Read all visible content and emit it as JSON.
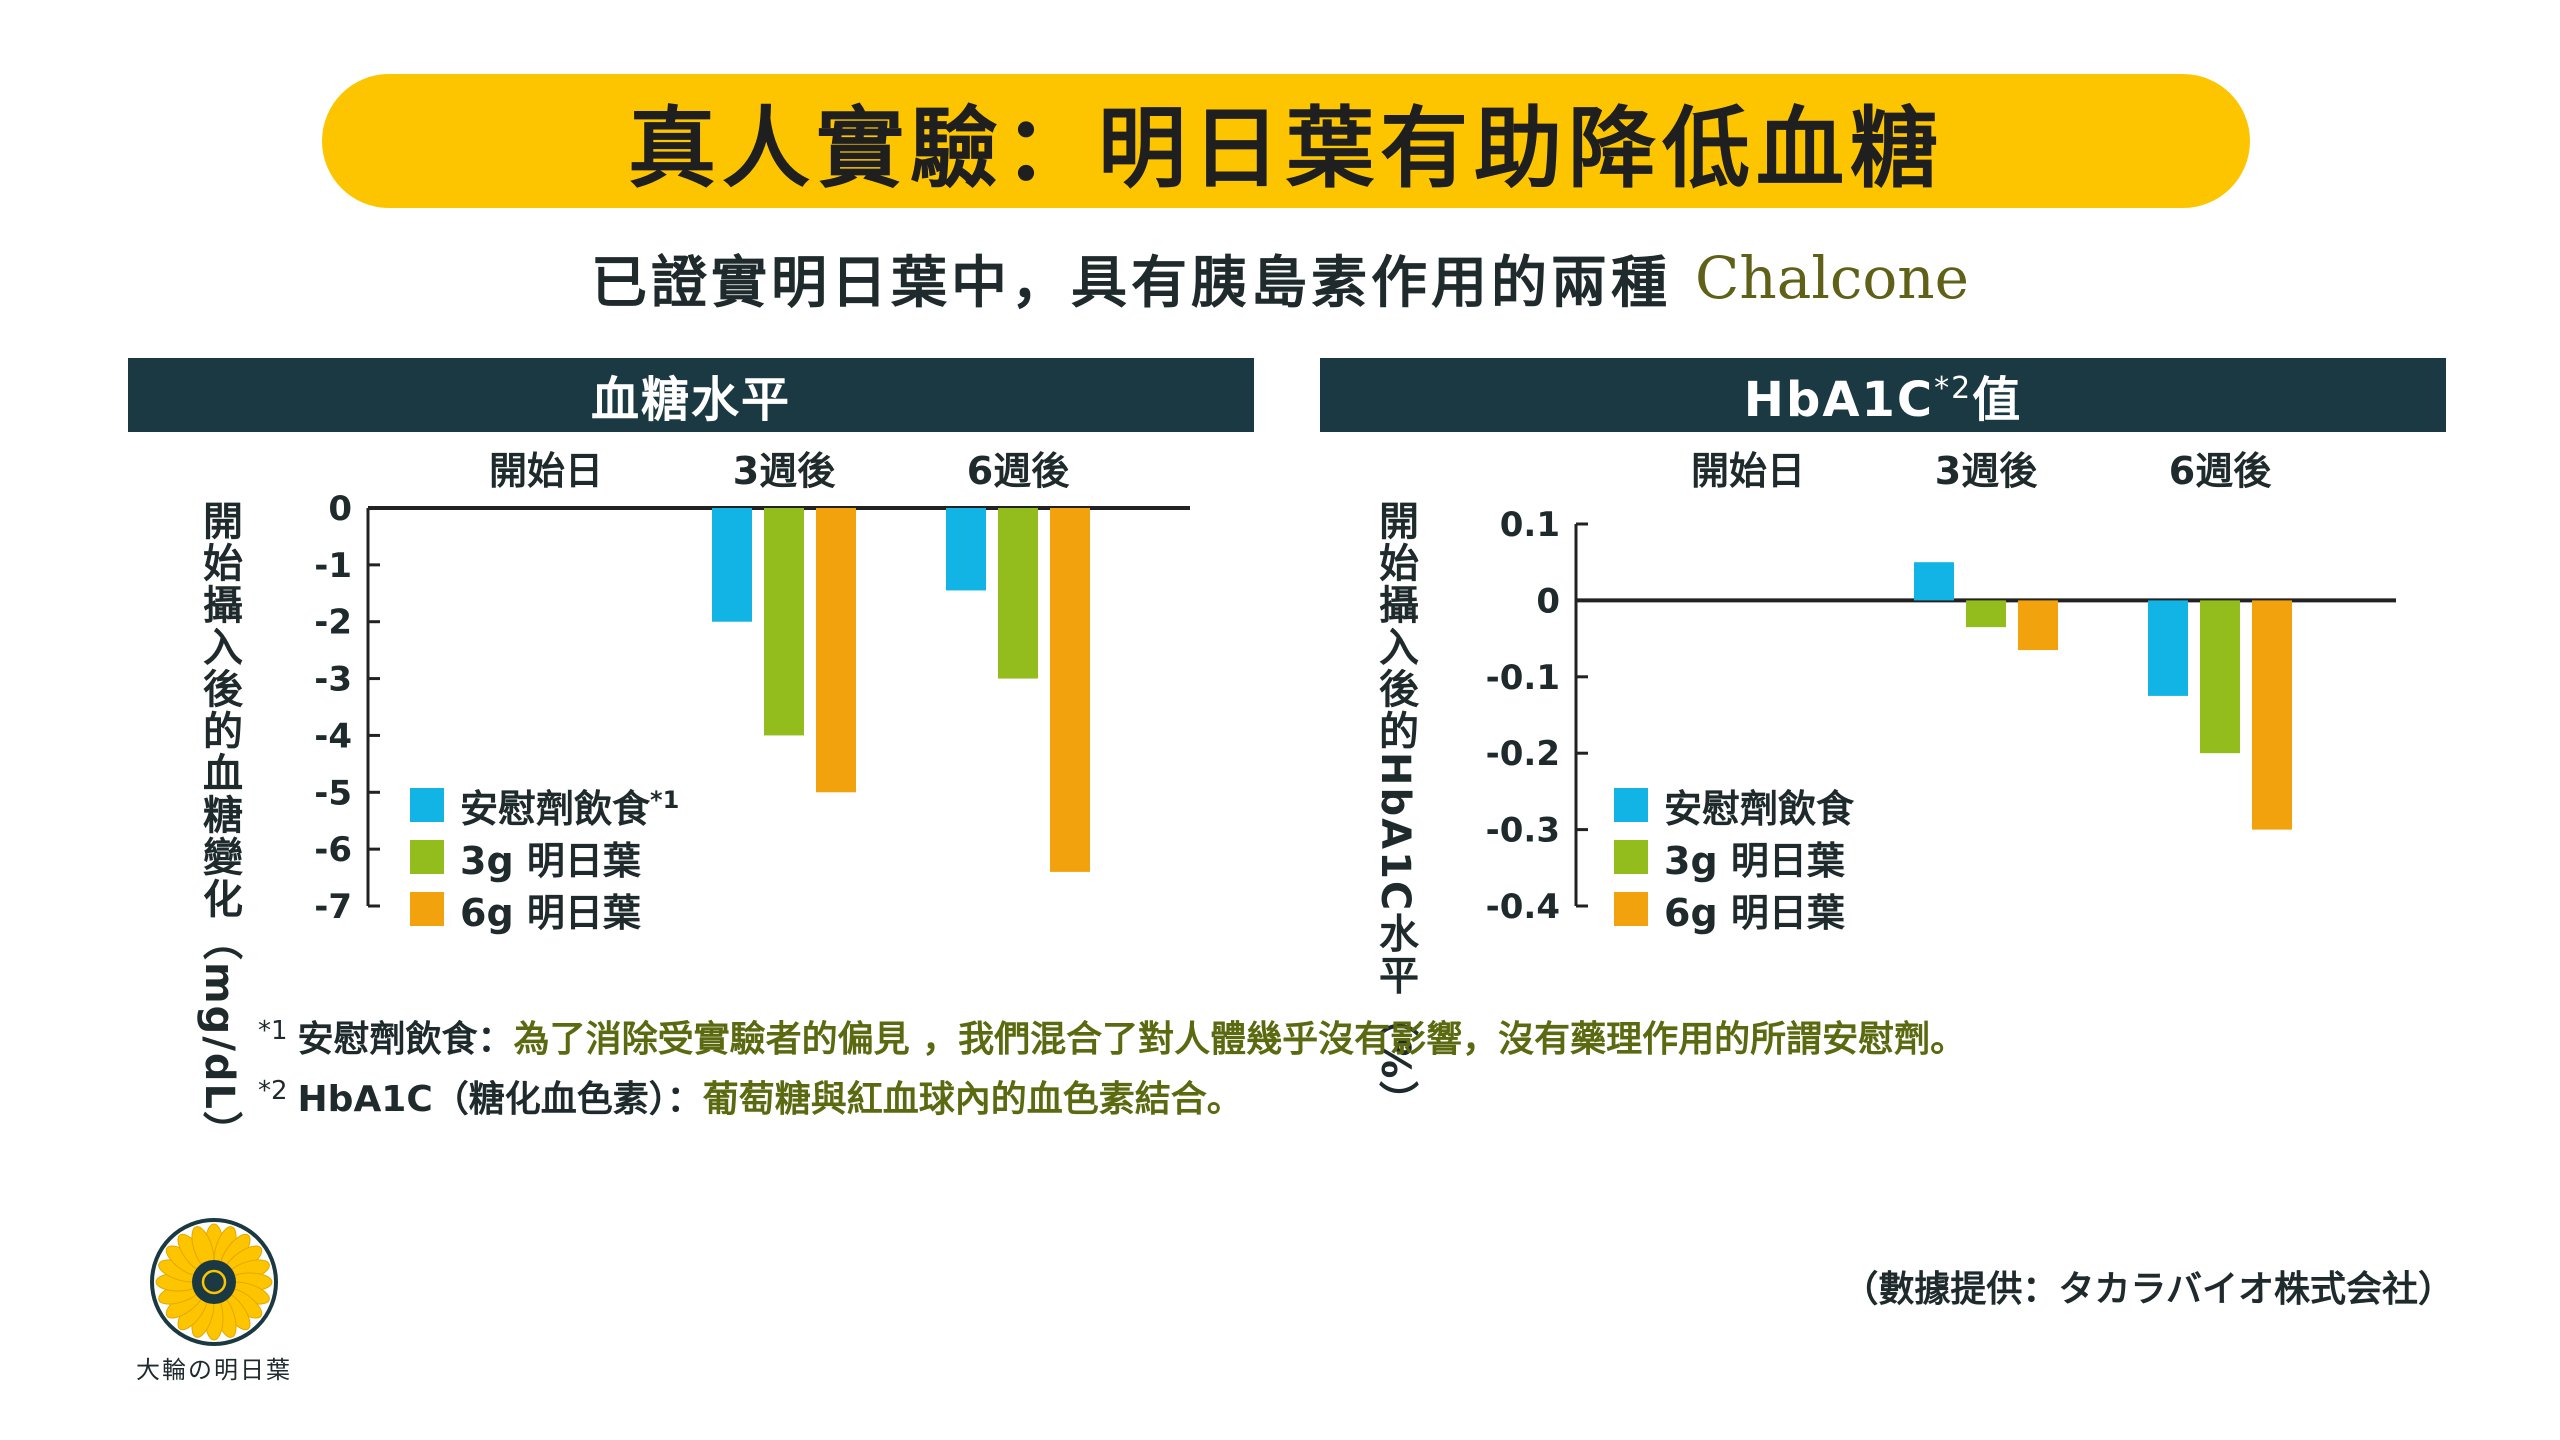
{
  "title": "真人實驗：明日葉有助降低血糖",
  "subtitle": {
    "main": "已證實明日葉中，具有胰島素作用的兩種",
    "accent": "Chalcone"
  },
  "panels": {
    "left": {
      "header": "血糖水平",
      "ylabel": "開始攝入後的血糖變化（mg/dL）"
    },
    "right": {
      "header_main": "HbA1C",
      "header_sup": "*2",
      "header_tail": "值",
      "ylabel": "開始攝入後的HbA1C水平（%）"
    }
  },
  "legend": [
    {
      "label": "安慰劑飲食",
      "color": "#12b4e6"
    },
    {
      "label": "3g 明日葉",
      "color": "#92bd1c"
    },
    {
      "label": "6g 明日葉",
      "color": "#f2a20c"
    }
  ],
  "legend_left_sup": "*1",
  "chart_data": [
    {
      "type": "bar",
      "title": "血糖水平",
      "ylabel": "開始攝入後的血糖變化（mg/dL）",
      "categories": [
        "開始日",
        "3週後",
        "6週後"
      ],
      "series": [
        {
          "name": "安慰劑飲食",
          "color": "#12b4e6",
          "values": [
            0,
            -2.0,
            -1.45
          ]
        },
        {
          "name": "3g 明日葉",
          "color": "#92bd1c",
          "values": [
            0,
            -4.0,
            -3.0
          ]
        },
        {
          "name": "6g 明日葉",
          "color": "#f2a20c",
          "values": [
            0,
            -5.0,
            -6.4
          ]
        }
      ],
      "ylim": [
        -7,
        0
      ],
      "yticks": [
        0,
        -1,
        -2,
        -3,
        -4,
        -5,
        -6,
        -7
      ],
      "ytick_labels": [
        "0",
        "-1",
        "-2",
        "-3",
        "-4",
        "-5",
        "-6",
        "-7"
      ],
      "grid": false,
      "legend_position": "bottom-left"
    },
    {
      "type": "bar",
      "title": "HbA1C值",
      "ylabel": "開始攝入後的HbA1C水平（%）",
      "categories": [
        "開始日",
        "3週後",
        "6週後"
      ],
      "series": [
        {
          "name": "安慰劑飲食",
          "color": "#12b4e6",
          "values": [
            0,
            0.05,
            -0.125
          ]
        },
        {
          "name": "3g 明日葉",
          "color": "#92bd1c",
          "values": [
            0,
            -0.035,
            -0.2
          ]
        },
        {
          "name": "6g 明日葉",
          "color": "#f2a20c",
          "values": [
            0,
            -0.065,
            -0.3
          ]
        }
      ],
      "ylim": [
        -0.4,
        0.1
      ],
      "yticks": [
        0.1,
        0,
        -0.1,
        -0.2,
        -0.3,
        -0.4
      ],
      "ytick_labels": [
        "0.1",
        "0",
        "-0.1",
        "-0.2",
        "-0.3",
        "-0.4"
      ],
      "grid": false,
      "legend_position": "bottom-left"
    }
  ],
  "notes": [
    {
      "mark": "*1",
      "term": "安慰劑飲食：",
      "text": "為了消除受實驗者的偏見 ，我們混合了對人體幾乎沒有影響，沒有藥理作用的所謂安慰劑。"
    },
    {
      "mark": "*2",
      "term": "HbA1C（糖化血色素）：",
      "text": "葡萄糖與紅血球內的血色素結合。"
    }
  ],
  "source": "（數據提供：タカラバイオ株式会社）",
  "brand": {
    "name": "大輪の明日葉",
    "color_petal": "#fcc500",
    "color_ring": "#1b3943"
  }
}
